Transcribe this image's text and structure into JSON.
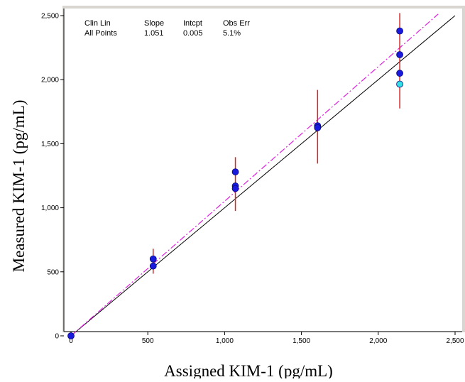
{
  "chart_data": {
    "type": "scatter",
    "title": "",
    "xlabel": "Assigned KIM-1 (pg/mL)",
    "ylabel": "Measured KIM-1 (pg/mL)",
    "xlim": [
      0,
      2500
    ],
    "ylim": [
      0,
      2500
    ],
    "xticks": [
      0,
      500,
      1000,
      1500,
      2000,
      2500
    ],
    "yticks": [
      0,
      500,
      1000,
      1500,
      2000,
      2500
    ],
    "xtick_labels": [
      "0",
      "500",
      "1,000",
      "1,500",
      "2,000",
      "2,500"
    ],
    "ytick_labels": [
      "0",
      "500",
      "1,000",
      "1,500",
      "2,000",
      "2,500"
    ],
    "grid": false,
    "stats_table": {
      "headers": [
        "Clin Lin",
        "Slope",
        "Intcpt",
        "Obs Err"
      ],
      "row": [
        "All Points",
        "1.051",
        "0.005",
        "5.1%"
      ]
    },
    "identity_line": {
      "x": [
        0,
        2500
      ],
      "y": [
        0,
        2500
      ],
      "color": "#000000"
    },
    "fit_line": {
      "slope": 1.051,
      "intercept": 0.005,
      "x": [
        0,
        2390
      ],
      "color": "#e020e0",
      "style": "dash-dot"
    },
    "points": [
      {
        "x": 0,
        "y": 0,
        "color": "#1a1adc"
      },
      {
        "x": 535,
        "y": 600,
        "color": "#1a1adc"
      },
      {
        "x": 535,
        "y": 545,
        "color": "#1a1adc"
      },
      {
        "x": 1070,
        "y": 1280,
        "color": "#1a1adc"
      },
      {
        "x": 1070,
        "y": 1170,
        "color": "#1a1adc"
      },
      {
        "x": 1070,
        "y": 1150,
        "color": "#1a1adc"
      },
      {
        "x": 1605,
        "y": 1640,
        "color": "#1a1adc"
      },
      {
        "x": 1605,
        "y": 1625,
        "color": "#1a1adc"
      },
      {
        "x": 2140,
        "y": 2380,
        "color": "#1a1adc"
      },
      {
        "x": 2140,
        "y": 2195,
        "color": "#1a1adc"
      },
      {
        "x": 2140,
        "y": 2050,
        "color": "#1a1adc"
      },
      {
        "x": 2140,
        "y": 1965,
        "color": "#33e0e8"
      }
    ],
    "error_bars": [
      {
        "x": 535,
        "low": 485,
        "high": 680,
        "color": "#e02020"
      },
      {
        "x": 1070,
        "low": 975,
        "high": 1395,
        "color": "#e02020"
      },
      {
        "x": 1605,
        "low": 1345,
        "high": 1920,
        "color": "#e02020"
      },
      {
        "x": 2140,
        "low": 1775,
        "high": 2520,
        "color": "#e02020"
      }
    ]
  }
}
